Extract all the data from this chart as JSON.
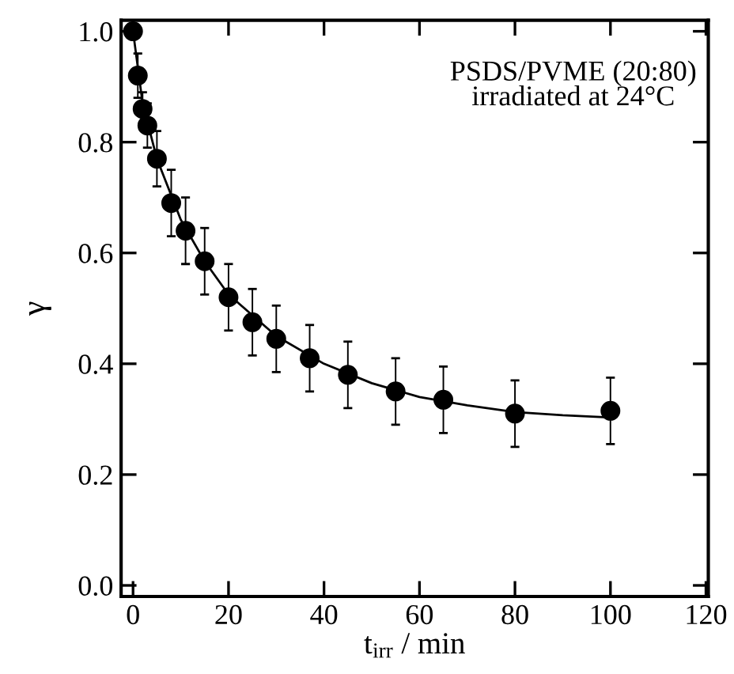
{
  "chart_data": {
    "type": "scatter",
    "xlabel": "t$_{irr}$ / min",
    "ylabel": "γ",
    "annotations": [
      "PSDS/PVME (20:80)\nirradiated at 24°C"
    ],
    "xlim": [
      -2.5,
      120.5
    ],
    "ylim": [
      -0.02,
      1.02
    ],
    "xticks": [
      0,
      20,
      40,
      60,
      80,
      100,
      120
    ],
    "yticks": [
      {
        "value": 0,
        "label": "0.0"
      },
      {
        "value": 0.2,
        "label": "0.2"
      },
      {
        "value": 0.4,
        "label": "0.4"
      },
      {
        "value": 0.6,
        "label": "0.6"
      },
      {
        "value": 0.8,
        "label": "0.8"
      },
      {
        "value": 1,
        "label": "1.0"
      }
    ],
    "grid": false,
    "legend": false,
    "series": [
      {
        "type": "line",
        "color": "#000000",
        "marker": "none",
        "x": [
          0,
          2,
          5,
          10,
          15,
          20,
          30,
          40,
          50,
          60,
          70,
          80,
          90,
          100
        ],
        "values": [
          1.0,
          0.87,
          0.77,
          0.66,
          0.585,
          0.525,
          0.45,
          0.4,
          0.365,
          0.34,
          0.325,
          0.313,
          0.307,
          0.303
        ]
      },
      {
        "color": "#000000",
        "marker": "circle",
        "x": [
          0,
          1,
          2,
          3,
          5,
          8,
          11,
          15,
          20,
          25,
          30,
          37,
          45,
          55,
          65,
          80,
          100
        ],
        "values": [
          1.0,
          0.92,
          0.86,
          0.83,
          0.77,
          0.69,
          0.64,
          0.585,
          0.52,
          0.475,
          0.445,
          0.41,
          0.38,
          0.35,
          0.335,
          0.31,
          0.315
        ],
        "errors": [
          null,
          0.04,
          0.03,
          0.04,
          0.05,
          0.06,
          0.06,
          0.06,
          0.06,
          0.06,
          0.06,
          0.06,
          0.06,
          0.06,
          0.06,
          0.06,
          0.06
        ]
      }
    ]
  }
}
